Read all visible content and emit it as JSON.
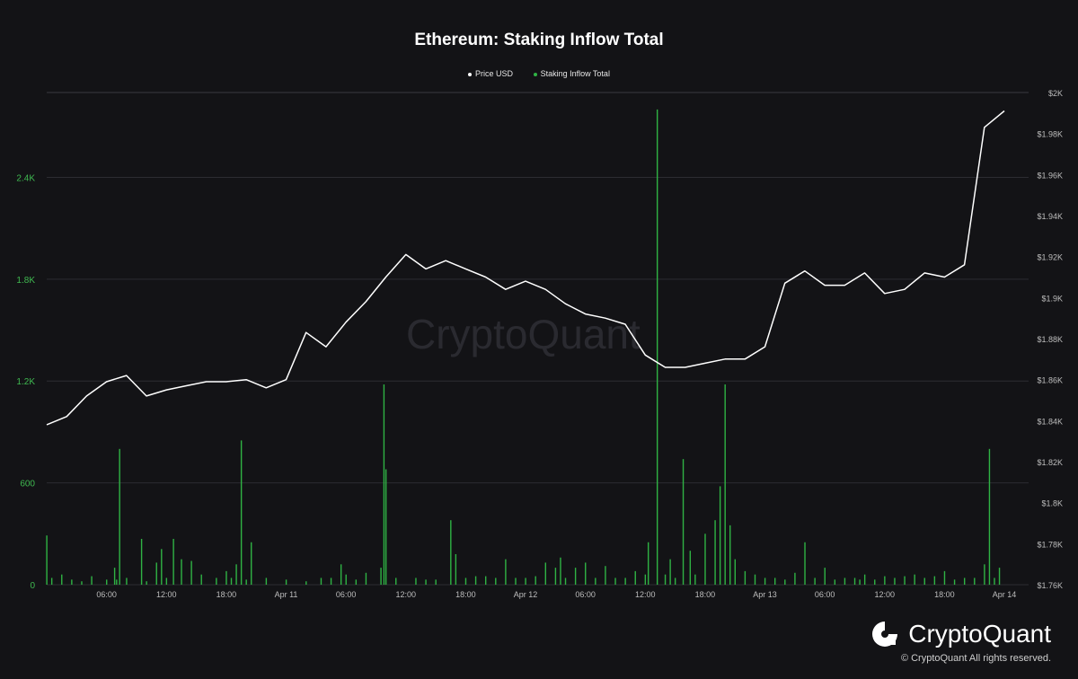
{
  "header": {
    "title": "Ethereum: Staking Inflow Total"
  },
  "legend": [
    {
      "label": "Price USD",
      "color": "#ffffff"
    },
    {
      "label": "Staking Inflow Total",
      "color": "#2fb344"
    }
  ],
  "watermark": "CryptoQuant",
  "brand": {
    "name": "CryptoQuant",
    "copyright": "© CryptoQuant All rights reserved."
  },
  "chart_data": {
    "type": "line",
    "title": "Ethereum: Staking Inflow Total",
    "x_axis": {
      "tick_labels": [
        "06:00",
        "12:00",
        "18:00",
        "Apr 11",
        "06:00",
        "12:00",
        "18:00",
        "Apr 12",
        "06:00",
        "12:00",
        "18:00",
        "Apr 13",
        "06:00",
        "12:00",
        "18:00",
        "Apr 14"
      ],
      "range_hours": [
        0,
        96
      ]
    },
    "y_left": {
      "label": "",
      "range": [
        0,
        2900
      ],
      "ticks": [
        0,
        600,
        1200,
        1800,
        2400
      ],
      "tick_labels": [
        "0",
        "600",
        "1.2K",
        "1.8K",
        "2.4K"
      ]
    },
    "y_right": {
      "label": "",
      "range": [
        1760,
        2000
      ],
      "ticks": [
        1760,
        1780,
        1800,
        1820,
        1840,
        1860,
        1880,
        1900,
        1920,
        1940,
        1960,
        1980,
        2000
      ],
      "tick_labels": [
        "$1.76K",
        "$1.78K",
        "$1.8K",
        "$1.82K",
        "$1.84K",
        "$1.86K",
        "$1.88K",
        "$1.9K",
        "$1.92K",
        "$1.94K",
        "$1.96K",
        "$1.98K",
        "$2K"
      ]
    },
    "grid": true,
    "legend_position": "top-center",
    "series": [
      {
        "name": "Price USD",
        "axis": "right",
        "color": "#ffffff",
        "points": [
          [
            0,
            1838
          ],
          [
            2,
            1842
          ],
          [
            4,
            1852
          ],
          [
            6,
            1859
          ],
          [
            8,
            1862
          ],
          [
            10,
            1852
          ],
          [
            12,
            1855
          ],
          [
            14,
            1857
          ],
          [
            16,
            1859
          ],
          [
            18,
            1859
          ],
          [
            20,
            1860
          ],
          [
            22,
            1856
          ],
          [
            24,
            1860
          ],
          [
            26,
            1883
          ],
          [
            28,
            1876
          ],
          [
            30,
            1888
          ],
          [
            32,
            1898
          ],
          [
            34,
            1910
          ],
          [
            36,
            1921
          ],
          [
            38,
            1914
          ],
          [
            40,
            1918
          ],
          [
            42,
            1914
          ],
          [
            44,
            1910
          ],
          [
            46,
            1904
          ],
          [
            48,
            1908
          ],
          [
            50,
            1904
          ],
          [
            52,
            1897
          ],
          [
            54,
            1892
          ],
          [
            56,
            1890
          ],
          [
            58,
            1887
          ],
          [
            60,
            1872
          ],
          [
            62,
            1866
          ],
          [
            64,
            1866
          ],
          [
            66,
            1868
          ],
          [
            68,
            1870
          ],
          [
            70,
            1870
          ],
          [
            72,
            1876
          ],
          [
            74,
            1907
          ],
          [
            76,
            1913
          ],
          [
            78,
            1906
          ],
          [
            80,
            1906
          ],
          [
            82,
            1912
          ],
          [
            84,
            1902
          ],
          [
            86,
            1904
          ],
          [
            88,
            1912
          ],
          [
            90,
            1910
          ],
          [
            92,
            1916
          ],
          [
            94,
            1983
          ],
          [
            96,
            1991
          ]
        ]
      },
      {
        "name": "Staking Inflow Total",
        "axis": "left",
        "color": "#2fb344",
        "type": "bar",
        "points": [
          [
            0,
            290
          ],
          [
            0.5,
            40
          ],
          [
            1.5,
            60
          ],
          [
            2.5,
            30
          ],
          [
            3.5,
            20
          ],
          [
            4.5,
            50
          ],
          [
            6,
            30
          ],
          [
            6.8,
            100
          ],
          [
            7,
            30
          ],
          [
            7.3,
            800
          ],
          [
            8,
            40
          ],
          [
            9.5,
            270
          ],
          [
            10,
            20
          ],
          [
            11,
            130
          ],
          [
            11.5,
            210
          ],
          [
            12,
            40
          ],
          [
            12.7,
            270
          ],
          [
            13.5,
            150
          ],
          [
            14.5,
            140
          ],
          [
            15.5,
            60
          ],
          [
            17,
            40
          ],
          [
            18,
            80
          ],
          [
            18.5,
            40
          ],
          [
            19,
            120
          ],
          [
            19.5,
            850
          ],
          [
            20,
            30
          ],
          [
            20.5,
            250
          ],
          [
            22,
            40
          ],
          [
            24,
            30
          ],
          [
            26,
            20
          ],
          [
            27.5,
            40
          ],
          [
            28.5,
            40
          ],
          [
            29.5,
            120
          ],
          [
            30,
            60
          ],
          [
            31,
            30
          ],
          [
            32,
            70
          ],
          [
            33.5,
            100
          ],
          [
            33.8,
            1180
          ],
          [
            34,
            680
          ],
          [
            35,
            40
          ],
          [
            37,
            40
          ],
          [
            38,
            30
          ],
          [
            39,
            30
          ],
          [
            40.5,
            380
          ],
          [
            41,
            180
          ],
          [
            42,
            40
          ],
          [
            43,
            50
          ],
          [
            44,
            50
          ],
          [
            45,
            40
          ],
          [
            46,
            150
          ],
          [
            47,
            40
          ],
          [
            48,
            40
          ],
          [
            49,
            50
          ],
          [
            50,
            130
          ],
          [
            51,
            100
          ],
          [
            51.5,
            160
          ],
          [
            52,
            40
          ],
          [
            53,
            100
          ],
          [
            54,
            130
          ],
          [
            55,
            40
          ],
          [
            56,
            110
          ],
          [
            57,
            40
          ],
          [
            58,
            40
          ],
          [
            59,
            80
          ],
          [
            60,
            60
          ],
          [
            60.3,
            250
          ],
          [
            61.2,
            2800
          ],
          [
            62,
            60
          ],
          [
            62.5,
            150
          ],
          [
            63,
            40
          ],
          [
            63.8,
            740
          ],
          [
            64.5,
            200
          ],
          [
            65,
            60
          ],
          [
            66,
            300
          ],
          [
            67,
            380
          ],
          [
            67.5,
            580
          ],
          [
            68,
            1180
          ],
          [
            68.5,
            350
          ],
          [
            69,
            150
          ],
          [
            70,
            80
          ],
          [
            71,
            60
          ],
          [
            72,
            40
          ],
          [
            73,
            40
          ],
          [
            74,
            30
          ],
          [
            75,
            70
          ],
          [
            76,
            250
          ],
          [
            77,
            40
          ],
          [
            78,
            100
          ],
          [
            79,
            30
          ],
          [
            80,
            40
          ],
          [
            81,
            40
          ],
          [
            81.5,
            30
          ],
          [
            82,
            60
          ],
          [
            83,
            30
          ],
          [
            84,
            50
          ],
          [
            85,
            40
          ],
          [
            86,
            50
          ],
          [
            87,
            60
          ],
          [
            88,
            40
          ],
          [
            89,
            50
          ],
          [
            90,
            80
          ],
          [
            91,
            30
          ],
          [
            92,
            40
          ],
          [
            93,
            40
          ],
          [
            94,
            120
          ],
          [
            94.5,
            800
          ],
          [
            95,
            40
          ],
          [
            95.5,
            100
          ]
        ]
      }
    ]
  }
}
